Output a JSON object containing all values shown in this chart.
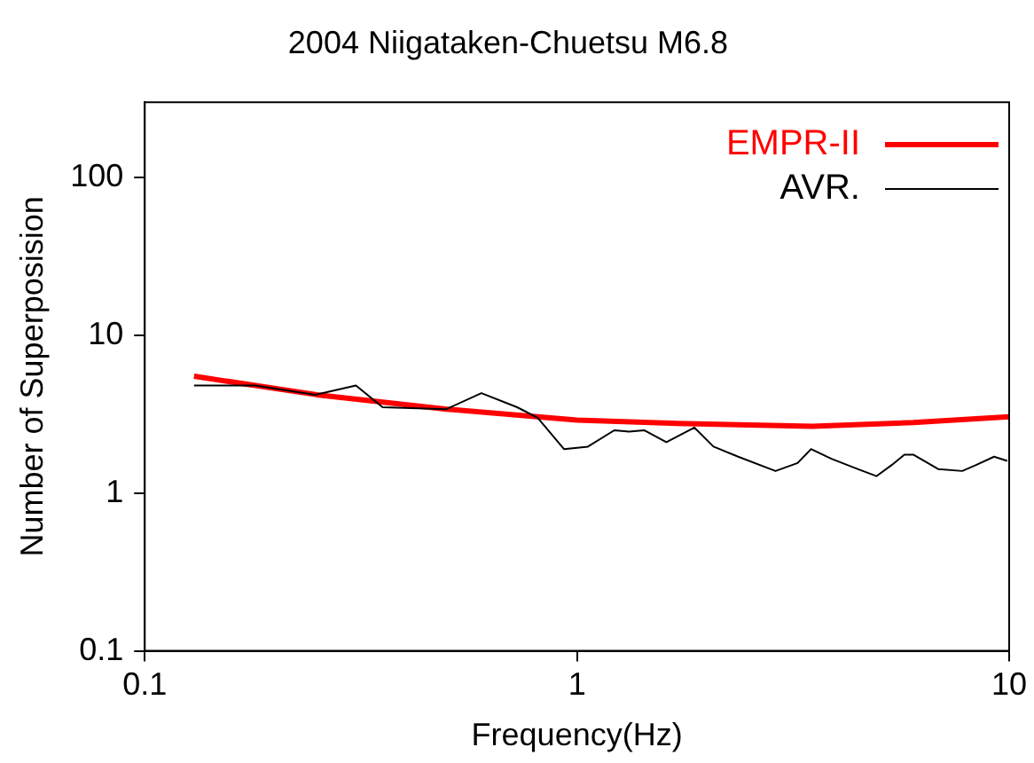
{
  "chart_data": {
    "type": "line",
    "title": "2004 Niigataken-Chuetsu M6.8",
    "xlabel": "Frequency(Hz)",
    "ylabel": "Number of Superposision",
    "log": "xy",
    "xlim": [
      0.1,
      10
    ],
    "xticks": [
      0.1,
      1,
      10
    ],
    "ylim": [
      0.1,
      300
    ],
    "yticks": [
      0.1,
      1,
      10,
      100
    ],
    "grid": false,
    "legend": "top right",
    "marker": "none",
    "series": [
      {
        "name": "EMPR-II",
        "color": "#ff0000",
        "x": [
          0.13,
          0.25,
          0.5,
          1,
          1.8,
          3.5,
          6,
          10
        ],
        "values": [
          5.5,
          4.2,
          3.4,
          2.9,
          2.75,
          2.65,
          2.8,
          3.05
        ]
      },
      {
        "name": "AVR.",
        "color": "#000000",
        "x": [
          0.13,
          0.18,
          0.248,
          0.308,
          0.355,
          0.498,
          0.601,
          0.727,
          0.811,
          0.933,
          1.06,
          1.22,
          1.32,
          1.43,
          1.61,
          1.87,
          2.07,
          2.36,
          2.88,
          3.24,
          3.48,
          3.88,
          4.46,
          4.93,
          5.34,
          5.72,
          6.01,
          6.85,
          7.79,
          8.36,
          9.23,
          9.9
        ],
        "values": [
          4.8,
          4.8,
          4.2,
          4.8,
          3.5,
          3.4,
          4.3,
          3.5,
          3.0,
          1.9,
          1.97,
          2.5,
          2.45,
          2.5,
          2.1,
          2.6,
          1.97,
          1.7,
          1.38,
          1.55,
          1.9,
          1.65,
          1.42,
          1.28,
          1.5,
          1.75,
          1.75,
          1.42,
          1.38,
          1.5,
          1.7,
          1.6
        ]
      }
    ]
  }
}
